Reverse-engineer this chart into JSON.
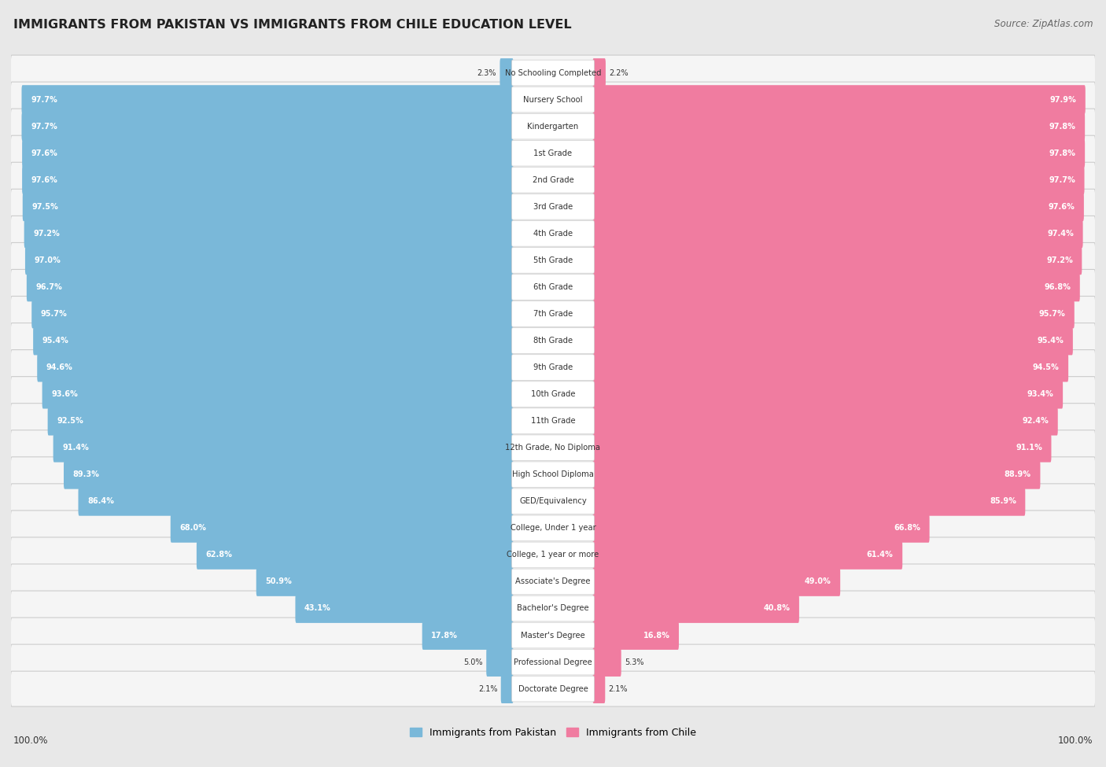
{
  "title": "IMMIGRANTS FROM PAKISTAN VS IMMIGRANTS FROM CHILE EDUCATION LEVEL",
  "source": "Source: ZipAtlas.com",
  "categories": [
    "No Schooling Completed",
    "Nursery School",
    "Kindergarten",
    "1st Grade",
    "2nd Grade",
    "3rd Grade",
    "4th Grade",
    "5th Grade",
    "6th Grade",
    "7th Grade",
    "8th Grade",
    "9th Grade",
    "10th Grade",
    "11th Grade",
    "12th Grade, No Diploma",
    "High School Diploma",
    "GED/Equivalency",
    "College, Under 1 year",
    "College, 1 year or more",
    "Associate's Degree",
    "Bachelor's Degree",
    "Master's Degree",
    "Professional Degree",
    "Doctorate Degree"
  ],
  "pakistan_values": [
    2.3,
    97.7,
    97.7,
    97.6,
    97.6,
    97.5,
    97.2,
    97.0,
    96.7,
    95.7,
    95.4,
    94.6,
    93.6,
    92.5,
    91.4,
    89.3,
    86.4,
    68.0,
    62.8,
    50.9,
    43.1,
    17.8,
    5.0,
    2.1
  ],
  "chile_values": [
    2.2,
    97.9,
    97.8,
    97.8,
    97.7,
    97.6,
    97.4,
    97.2,
    96.8,
    95.7,
    95.4,
    94.5,
    93.4,
    92.4,
    91.1,
    88.9,
    85.9,
    66.8,
    61.4,
    49.0,
    40.8,
    16.8,
    5.3,
    2.1
  ],
  "pakistan_color": "#7ab8d9",
  "chile_color": "#f07ca0",
  "background_color": "#e8e8e8",
  "row_bg_color": "#f5f5f5",
  "row_border_color": "#cccccc",
  "legend_pakistan": "Immigrants from Pakistan",
  "legend_chile": "Immigrants from Chile",
  "label_text_color_inside": "white",
  "label_text_color_outside": "#333333",
  "center_label_color": "#333333"
}
